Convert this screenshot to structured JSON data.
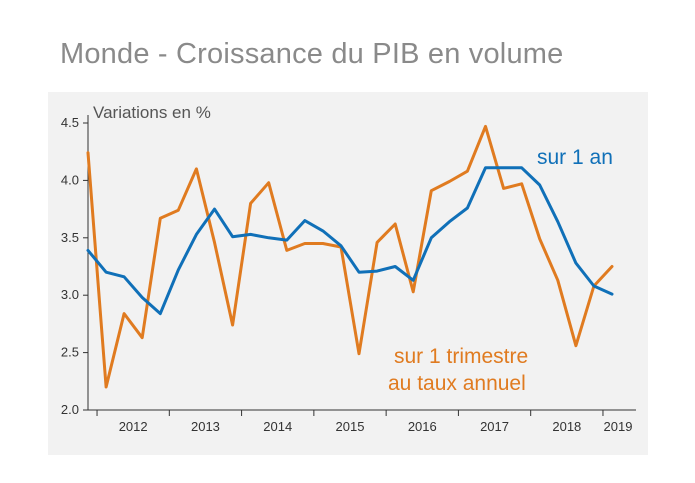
{
  "title": "Monde - Croissance du PIB en volume",
  "chart_data": {
    "type": "line",
    "title": "Monde - Croissance du PIB en volume",
    "ylabel": "Variations en %",
    "xlabel": "",
    "ylim": [
      2.0,
      4.5
    ],
    "yticks": [
      "2.0",
      "2.5",
      "3.0",
      "3.5",
      "4.0",
      "4.5"
    ],
    "x_tick_labels": [
      "2012",
      "2013",
      "2014",
      "2015",
      "2016",
      "2017",
      "2018",
      "2019"
    ],
    "grid": false,
    "background": "#f2f2f2",
    "x_start": "2011 Q4",
    "series": [
      {
        "name": "sur 1 an",
        "color": "#1070b8",
        "values": [
          3.39,
          3.2,
          3.16,
          2.98,
          2.84,
          3.22,
          3.53,
          3.75,
          3.51,
          3.53,
          3.5,
          3.48,
          3.65,
          3.56,
          3.43,
          3.2,
          3.21,
          3.25,
          3.13,
          3.5,
          3.64,
          3.76,
          4.11,
          4.11,
          4.11,
          3.96,
          3.64,
          3.28,
          3.08,
          3.01
        ]
      },
      {
        "name": "sur 1 trimestre au taux annuel",
        "color": "#e07b20",
        "values": [
          4.24,
          2.2,
          2.84,
          2.63,
          3.67,
          3.74,
          4.1,
          3.46,
          2.74,
          3.8,
          3.98,
          3.39,
          3.45,
          3.45,
          3.42,
          2.49,
          3.46,
          3.62,
          3.03,
          3.91,
          3.99,
          4.08,
          4.47,
          3.93,
          3.97,
          3.49,
          3.13,
          2.56,
          3.08,
          3.25
        ]
      }
    ],
    "annotations": [
      {
        "text": "sur 1 an",
        "color": "#1070b8"
      },
      {
        "text": "sur 1 trimestre",
        "color": "#e07b20"
      },
      {
        "text": "au taux annuel",
        "color": "#e07b20"
      }
    ]
  }
}
